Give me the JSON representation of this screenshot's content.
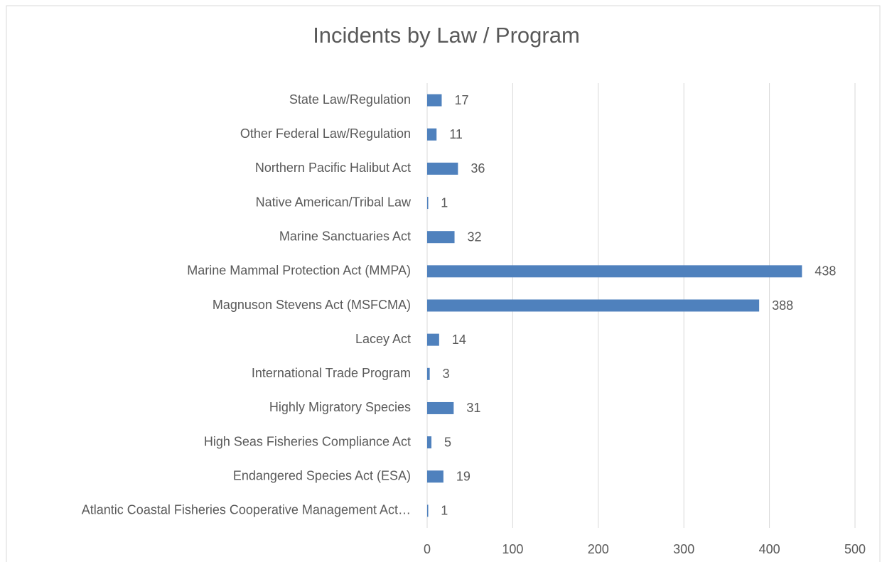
{
  "chart_data": {
    "type": "hbar",
    "title": "Incidents by Law / Program",
    "categories": [
      "State Law/Regulation",
      "Other Federal Law/Regulation",
      "Northern Pacific Halibut Act",
      "Native American/Tribal Law",
      "Marine Sanctuaries Act",
      "Marine Mammal Protection Act (MMPA)",
      "Magnuson Stevens Act (MSFCMA)",
      "Lacey Act",
      "International Trade Program",
      "Highly Migratory Species",
      "High Seas Fisheries Compliance Act",
      "Endangered Species Act (ESA)",
      "Atlantic Coastal Fisheries Cooperative Management Act…"
    ],
    "values": [
      17,
      11,
      36,
      1,
      32,
      438,
      388,
      14,
      3,
      31,
      5,
      19,
      1
    ],
    "color": "#4f81bd",
    "xlim": [
      0,
      500
    ],
    "xticks": [
      0,
      100,
      200,
      300,
      400,
      500
    ],
    "grid": true
  }
}
